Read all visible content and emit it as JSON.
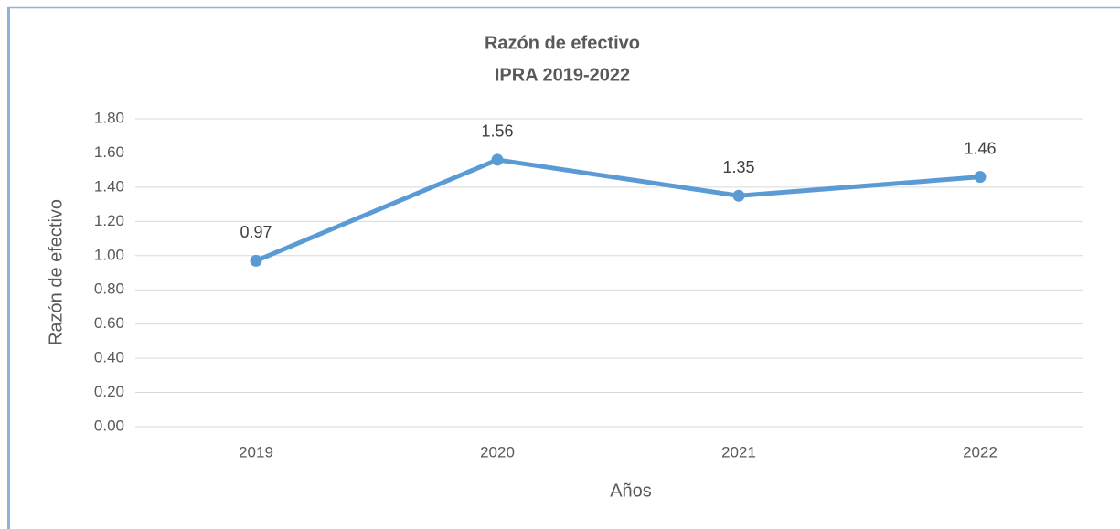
{
  "chart_data": {
    "type": "line",
    "title": "Razón de efectivo",
    "subtitle": "IPRA 2019-2022",
    "x_label": "Años",
    "y_label": "Razón de efectivo",
    "categories": [
      "2019",
      "2020",
      "2021",
      "2022"
    ],
    "series": [
      {
        "name": "Razón de efectivo",
        "color": "#5b9bd5",
        "values": [
          0.97,
          1.56,
          1.35,
          1.46
        ]
      }
    ],
    "ylim": [
      0,
      1.8
    ],
    "yticks": [
      {
        "value": 0,
        "label": "0.00"
      },
      {
        "value": 0.2,
        "label": "0.20"
      },
      {
        "value": 0.4,
        "label": "0.40"
      },
      {
        "value": 0.6,
        "label": "0.60"
      },
      {
        "value": 0.8,
        "label": "0.80"
      },
      {
        "value": 1,
        "label": "1.00"
      },
      {
        "value": 1.2,
        "label": "1.20"
      },
      {
        "value": 1.4,
        "label": "1.40"
      },
      {
        "value": 1.6,
        "label": "1.60"
      },
      {
        "value": 1.8,
        "label": "1.80"
      }
    ],
    "grid": true
  }
}
